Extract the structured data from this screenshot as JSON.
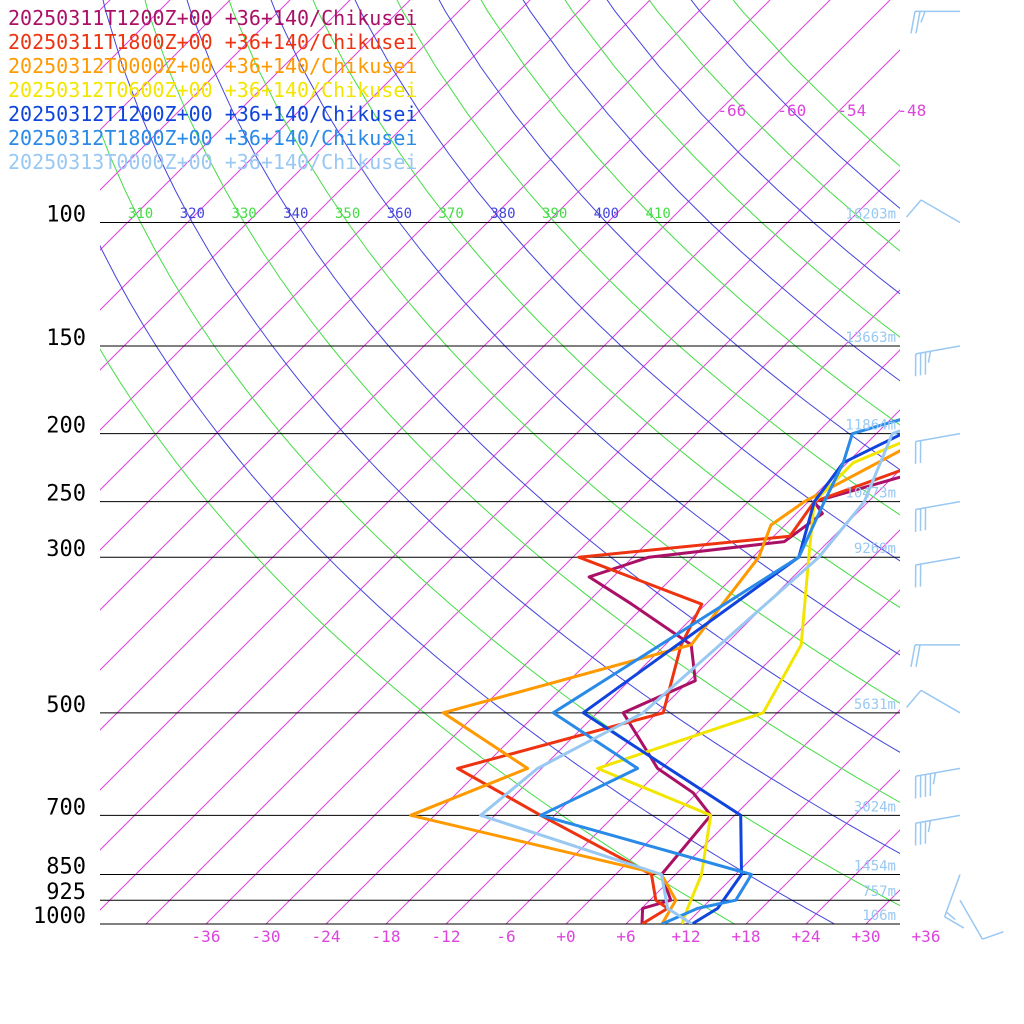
{
  "chart_data": {
    "type": "line",
    "chart_kind": "skew-T log-P sounding",
    "legend_placement": "top-left",
    "series": [
      {
        "name": "20250311T1200Z+00 +36+140/Chikusei",
        "color": "#aa1166"
      },
      {
        "name": "20250311T1800Z+00 +36+140/Chikusei",
        "color": "#ee3311"
      },
      {
        "name": "20250312T0000Z+00 +36+140/Chikusei",
        "color": "#ff9900"
      },
      {
        "name": "20250312T0600Z+00 +36+140/Chikusei",
        "color": "#f2e600"
      },
      {
        "name": "20250312T1200Z+00 +36+140/Chikusei",
        "color": "#1144dd"
      },
      {
        "name": "20250312T1800Z+00 +36+140/Chikusei",
        "color": "#2a8ae8"
      },
      {
        "name": "20250313T0000Z+00 +36+140/Chikusei",
        "color": "#99c8f2"
      }
    ],
    "pressure_levels": [
      {
        "p": 100,
        "label": "100",
        "height": "16203m"
      },
      {
        "p": 150,
        "label": "150",
        "height": "13663m"
      },
      {
        "p": 200,
        "label": "200",
        "height": "11864m"
      },
      {
        "p": 250,
        "label": "250",
        "height": "10473m"
      },
      {
        "p": 300,
        "label": "300",
        "height": "9269m"
      },
      {
        "p": 500,
        "label": "500",
        "height": "5631m"
      },
      {
        "p": 700,
        "label": "700",
        "height": "3024m"
      },
      {
        "p": 850,
        "label": "850",
        "height": "1454m"
      },
      {
        "p": 925,
        "label": "925",
        "height": "757m"
      },
      {
        "p": 1000,
        "label": "1000",
        "height": "106m"
      }
    ],
    "temperature_ticks": [
      "-36",
      "-30",
      "-24",
      "-18",
      "-12",
      "-6",
      "+0",
      "+6",
      "+12",
      "+18",
      "+24",
      "+30",
      "+36"
    ],
    "upper_temperature_ticks": [
      "-66",
      "-60",
      "-54",
      "-48"
    ],
    "theta_ticks": [
      "310",
      "320",
      "330",
      "340",
      "350",
      "360",
      "370",
      "380",
      "390",
      "400",
      "410"
    ],
    "colors": {
      "isotherm": "#dd44dd",
      "theta_blue": "#4444dd",
      "theta_green": "#44dd44",
      "height_label": "#99c8f2",
      "tick_label": "#dd44dd",
      "wind_barb": "#99c8f2"
    },
    "profiles": [
      {
        "series": 0,
        "points": [
          [
            1000,
            7.6
          ],
          [
            950,
            6.1
          ],
          [
            925,
            8.1
          ],
          [
            850,
            4.6
          ],
          [
            700,
            3.6
          ],
          [
            650,
            -0.4
          ],
          [
            600,
            -6.4
          ],
          [
            500,
            -15.4
          ],
          [
            450,
            -11.4
          ],
          [
            400,
            -15.4
          ],
          [
            350,
            -25.4
          ],
          [
            320,
            -32.4
          ],
          [
            300,
            -28.4
          ],
          [
            285,
            -16.4
          ],
          [
            260,
            -15.4
          ],
          [
            250,
            -17.4
          ],
          [
            200,
            -0.4
          ],
          [
            170,
            1.6
          ],
          [
            100,
            9.6
          ],
          [
            70,
            18.6
          ],
          [
            50,
            20.6
          ]
        ]
      },
      {
        "series": 1,
        "points": [
          [
            1000,
            7.6
          ],
          [
            950,
            8.6
          ],
          [
            925,
            6.6
          ],
          [
            850,
            3.6
          ],
          [
            700,
            -13.4
          ],
          [
            600,
            -26.4
          ],
          [
            500,
            -11.4
          ],
          [
            400,
            -16.4
          ],
          [
            350,
            -18.4
          ],
          [
            300,
            -35.4
          ],
          [
            280,
            -16.4
          ],
          [
            250,
            -17.4
          ],
          [
            200,
            -5.4
          ],
          [
            170,
            1.6
          ],
          [
            100,
            9.6
          ],
          [
            60,
            22.6
          ],
          [
            50,
            24.6
          ]
        ]
      },
      {
        "series": 2,
        "points": [
          [
            1000,
            9.6
          ],
          [
            925,
            8.6
          ],
          [
            850,
            4.6
          ],
          [
            700,
            -26.4
          ],
          [
            600,
            -19.4
          ],
          [
            500,
            -33.4
          ],
          [
            400,
            -15.4
          ],
          [
            300,
            -17.4
          ],
          [
            270,
            -19.4
          ],
          [
            250,
            -18.4
          ],
          [
            200,
            -12.4
          ],
          [
            150,
            -0.4
          ],
          [
            100,
            7.6
          ],
          [
            50,
            22.6
          ]
        ]
      },
      {
        "series": 3,
        "points": [
          [
            1000,
            11.6
          ],
          [
            950,
            10.6
          ],
          [
            850,
            8.6
          ],
          [
            700,
            3.6
          ],
          [
            600,
            -12.4
          ],
          [
            500,
            -1.4
          ],
          [
            400,
            -4.4
          ],
          [
            300,
            -12.4
          ],
          [
            250,
            -17.4
          ],
          [
            220,
            -17.4
          ],
          [
            200,
            -13.4
          ],
          [
            150,
            -0.4
          ],
          [
            100,
            6.6
          ],
          [
            60,
            17.6
          ],
          [
            50,
            22.6
          ]
        ]
      },
      {
        "series": 4,
        "points": [
          [
            1000,
            12.6
          ],
          [
            950,
            13.6
          ],
          [
            850,
            12.6
          ],
          [
            700,
            6.6
          ],
          [
            500,
            -19.4
          ],
          [
            300,
            -13.4
          ],
          [
            250,
            -17.4
          ],
          [
            220,
            -18.4
          ],
          [
            200,
            -15.4
          ],
          [
            150,
            2.6
          ],
          [
            100,
            -0.4
          ],
          [
            70,
            7.6
          ],
          [
            65,
            8.6
          ],
          [
            50,
            19.6
          ]
        ]
      },
      {
        "series": 5,
        "points": [
          [
            1000,
            9.6
          ],
          [
            950,
            11.6
          ],
          [
            925,
            14.6
          ],
          [
            850,
            13.6
          ],
          [
            700,
            -13.4
          ],
          [
            600,
            -8.4
          ],
          [
            500,
            -22.4
          ],
          [
            300,
            -13.4
          ],
          [
            250,
            -16.4
          ],
          [
            220,
            -18.4
          ],
          [
            200,
            -20.4
          ],
          [
            150,
            0.6
          ],
          [
            100,
            -0.4
          ],
          [
            50,
            19.6
          ]
        ]
      },
      {
        "series": 6,
        "points": [
          [
            1000,
            12.6
          ],
          [
            950,
            8.6
          ],
          [
            850,
            4.6
          ],
          [
            700,
            -19.4
          ],
          [
            600,
            -18.4
          ],
          [
            500,
            -13.4
          ],
          [
            300,
            -11.4
          ],
          [
            250,
            -12.4
          ],
          [
            200,
            -16.4
          ],
          [
            150,
            -0.4
          ],
          [
            100,
            3.6
          ],
          [
            60,
            14.6
          ],
          [
            50,
            17.6
          ]
        ]
      }
    ],
    "wind_barbs": [
      {
        "p": 50,
        "speed_kt": 25,
        "dir": 270
      },
      {
        "p": 100,
        "speed_kt": 10,
        "dir": 300
      },
      {
        "p": 150,
        "speed_kt": 35,
        "dir": 260
      },
      {
        "p": 200,
        "speed_kt": 50,
        "dir": 260
      },
      {
        "p": 250,
        "speed_kt": 30,
        "dir": 260
      },
      {
        "p": 300,
        "speed_kt": 50,
        "dir": 260
      },
      {
        "p": 400,
        "speed_kt": 20,
        "dir": 270
      },
      {
        "p": 500,
        "speed_kt": 10,
        "dir": 300
      },
      {
        "p": 600,
        "speed_kt": 45,
        "dir": 260
      },
      {
        "p": 700,
        "speed_kt": 35,
        "dir": 260
      },
      {
        "p": 850,
        "speed_kt": 15,
        "dir": 200
      },
      {
        "p": 925,
        "speed_kt": 10,
        "dir": 150
      }
    ]
  }
}
